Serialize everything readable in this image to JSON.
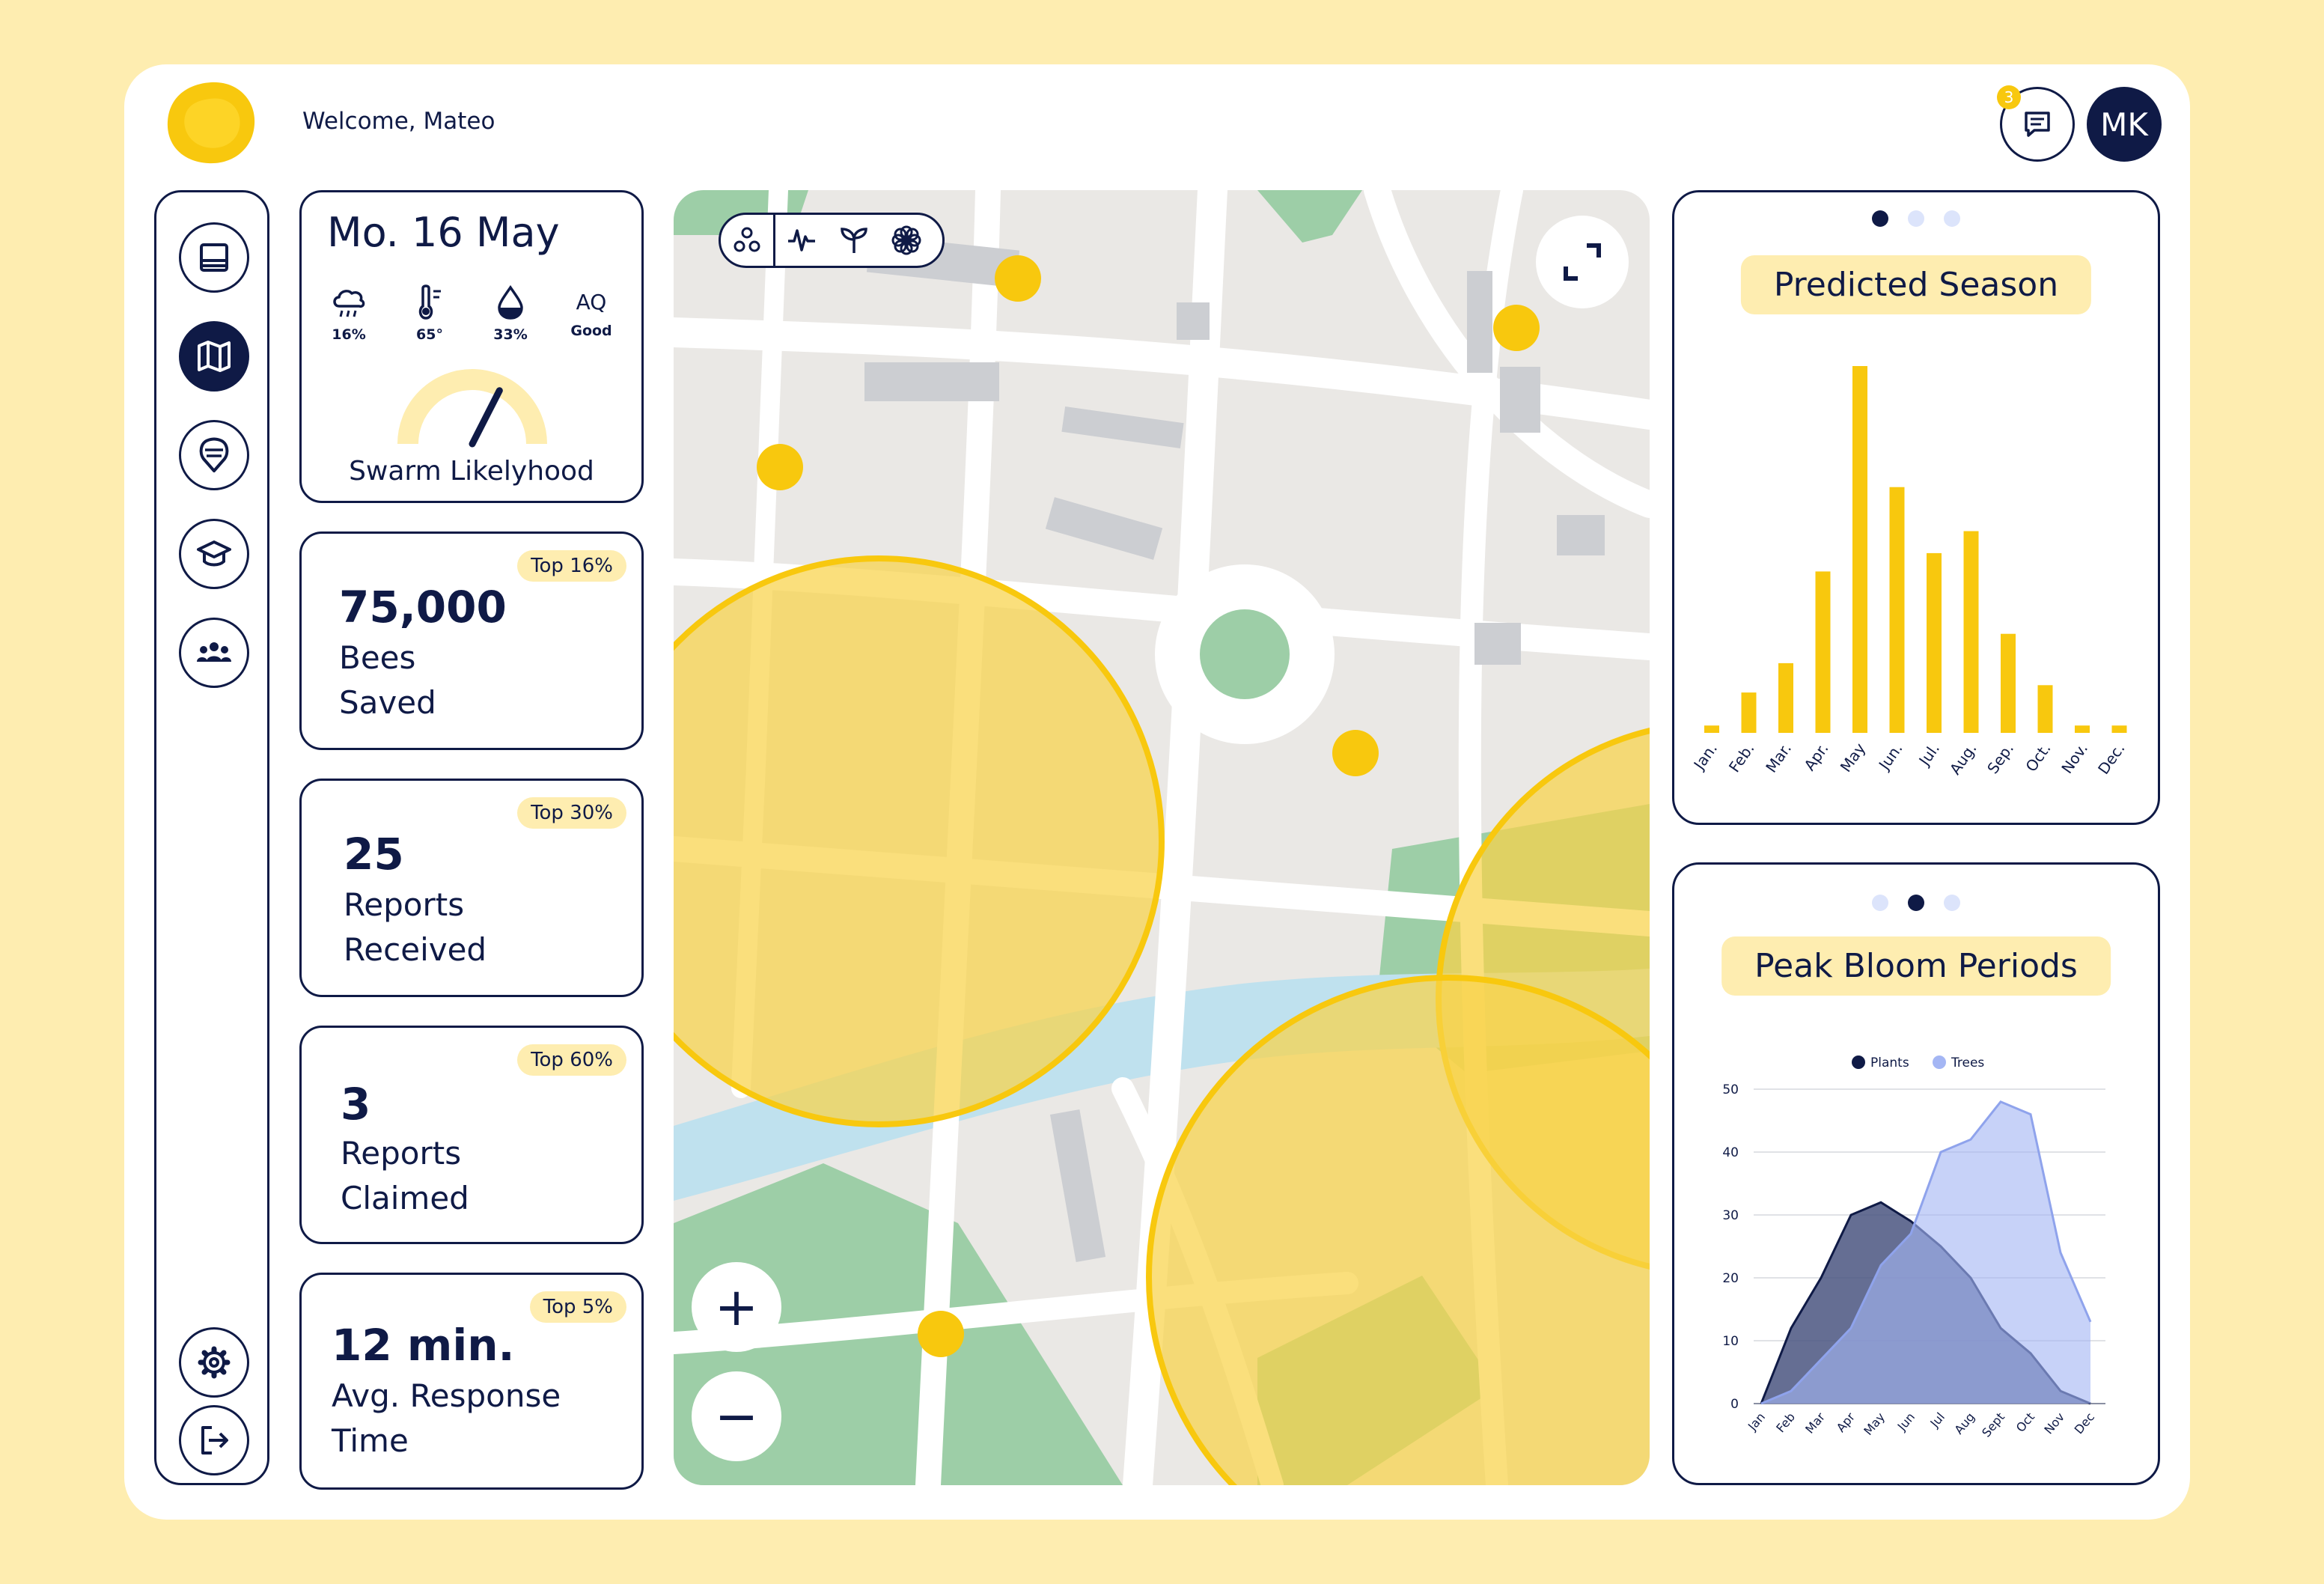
{
  "header": {
    "welcome": "Welcome, Mateo",
    "notification_count": "3",
    "avatar_initials": "MK"
  },
  "sidebar": {
    "items": [
      {
        "icon": "dashboard-icon",
        "active": false
      },
      {
        "icon": "map-icon",
        "active": true
      },
      {
        "icon": "location-pin-icon",
        "active": false
      },
      {
        "icon": "graduation-cap-icon",
        "active": false
      },
      {
        "icon": "community-icon",
        "active": false
      }
    ],
    "bottom": [
      {
        "icon": "settings-icon"
      },
      {
        "icon": "logout-icon"
      }
    ]
  },
  "weather": {
    "date": "Mo. 16 May",
    "rain": "16%",
    "temperature": "65°",
    "humidity": "33%",
    "aq_label": "AQ",
    "aq_value": "Good",
    "gauge_label": "Swarm Likelyhood",
    "gauge_level": 0.65
  },
  "stats": [
    {
      "value": "75,000",
      "line1": "Bees",
      "line2": "Saved",
      "badge": "Top 16%"
    },
    {
      "value": "25",
      "line1": "Reports",
      "line2": "Received",
      "badge": "Top 30%"
    },
    {
      "value": "3",
      "line1": "Reports",
      "line2": "Claimed",
      "badge": "Top 60%"
    },
    {
      "value": "12 min.",
      "line1": "Avg. Response",
      "line2": "Time",
      "badge": "Top 5%"
    }
  ],
  "map": {
    "tools": [
      "cluster-icon",
      "activity-icon",
      "sprout-icon",
      "flower-icon"
    ],
    "zoom_in": "+",
    "zoom_out": "−"
  },
  "colors": {
    "navy": "#0F1A46",
    "yellow": "#F8C80E",
    "cream": "#FEEDB0",
    "periwinkle": "#A4B6F4"
  },
  "chart_data": [
    {
      "type": "bar",
      "title": "Predicted Season",
      "categories": [
        "Jan.",
        "Feb.",
        "Mar.",
        "Apr.",
        "May",
        "Jun.",
        "Jul.",
        "Aug.",
        "Sep.",
        "Oct.",
        "Nov.",
        "Dec."
      ],
      "values": [
        2,
        11,
        19,
        44,
        100,
        67,
        49,
        55,
        27,
        13,
        2,
        2
      ],
      "grid": false,
      "legend": "none"
    },
    {
      "type": "area",
      "title": "Peak Bloom Periods",
      "categories": [
        "Jan",
        "Feb",
        "Mar",
        "Apr",
        "May",
        "Jun",
        "Jul",
        "Aug",
        "Sept",
        "Oct",
        "Nov",
        "Dec"
      ],
      "ylim": [
        0,
        50
      ],
      "yticks": [
        0,
        10,
        20,
        30,
        40,
        50
      ],
      "grid": true,
      "legend": "top-center",
      "series": [
        {
          "name": "Plants",
          "values": [
            0,
            12,
            20,
            30,
            32,
            29,
            25,
            20,
            12,
            8,
            2,
            0
          ]
        },
        {
          "name": "Trees",
          "values": [
            0,
            2,
            7,
            12,
            22,
            27,
            40,
            42,
            48,
            46,
            24,
            13
          ]
        }
      ]
    }
  ]
}
